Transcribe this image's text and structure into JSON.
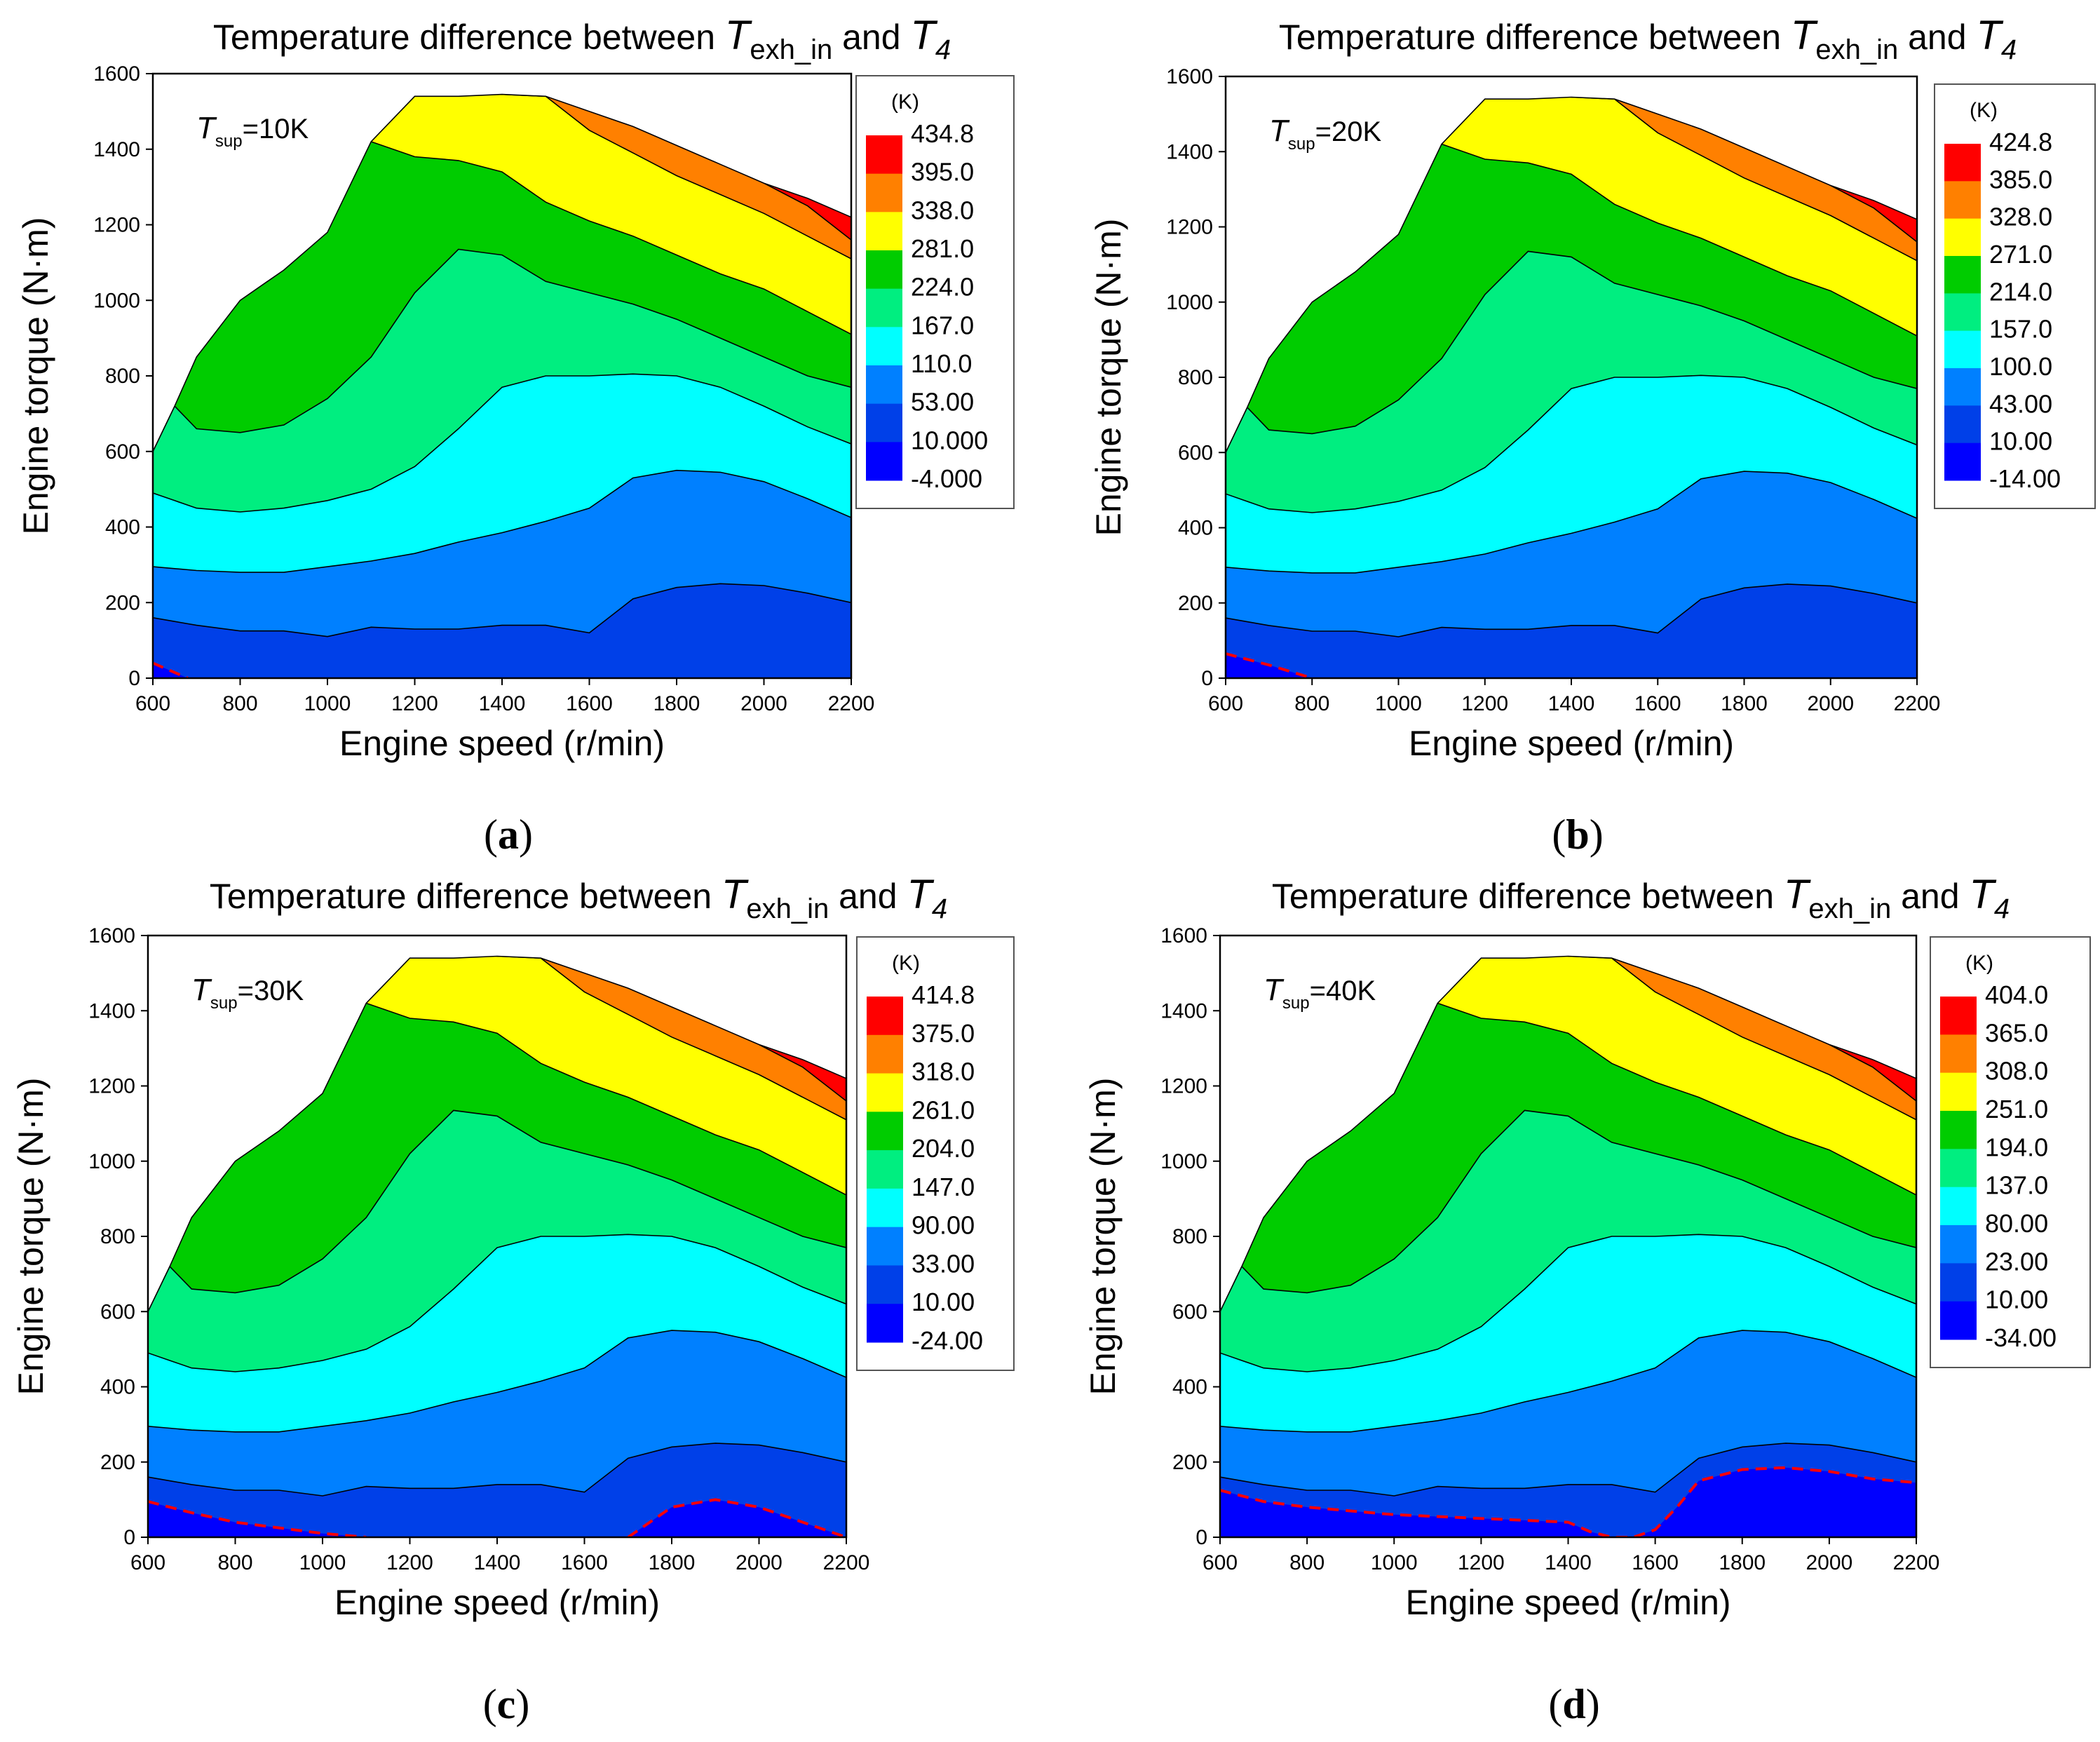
{
  "figure": {
    "title_lead": "Temperature difference between ",
    "title_var_a": "T",
    "title_var_a_sub": "exh_in",
    "title_mid": " and ",
    "title_var_b": "T",
    "title_var_b_sub": "4"
  },
  "colors": {
    "levels": [
      "#0000ff",
      "#0040e8",
      "#0080ff",
      "#00ffff",
      "#00ee80",
      "#00cc00",
      "#ffff00",
      "#ff8000",
      "#ff0000"
    ],
    "boundary_dash": "#ff0000",
    "contour_line": "#000000"
  },
  "chart_data": [
    {
      "type": "contour",
      "panel_label": "a",
      "title": "Temperature difference between Texh_in and T4",
      "annotation": {
        "var": "T",
        "sub": "sup",
        "value": "=10K"
      },
      "xlabel": "Engine speed (r/min)",
      "ylabel": "Engine torque (N·m)",
      "xlim": [
        600,
        2200
      ],
      "ylim": [
        0,
        1600
      ],
      "x_ticks": [
        "600",
        "800",
        "1000",
        "1200",
        "1400",
        "1600",
        "1800",
        "2000",
        "2200"
      ],
      "y_ticks": [
        "0",
        "200",
        "400",
        "600",
        "800",
        "1000",
        "1200",
        "1400",
        "1600"
      ],
      "legend_title": "(K)",
      "legend_labels": [
        "434.8",
        "395.0",
        "338.0",
        "281.0",
        "224.0",
        "167.0",
        "110.0",
        "53.00",
        "10.000",
        "-4.000"
      ],
      "zero_line": [
        [
          600,
          40
        ],
        [
          680,
          0
        ]
      ]
    },
    {
      "type": "contour",
      "panel_label": "b",
      "title": "Temperature difference between Texh_in and T4",
      "annotation": {
        "var": "T",
        "sub": "sup",
        "value": "=20K"
      },
      "xlabel": "Engine speed (r/min)",
      "ylabel": "Engine torque (N·m)",
      "xlim": [
        600,
        2200
      ],
      "ylim": [
        0,
        1600
      ],
      "x_ticks": [
        "600",
        "800",
        "1000",
        "1200",
        "1400",
        "1600",
        "1800",
        "2000",
        "2200"
      ],
      "y_ticks": [
        "0",
        "200",
        "400",
        "600",
        "800",
        "1000",
        "1200",
        "1400",
        "1600"
      ],
      "legend_title": "(K)",
      "legend_labels": [
        "424.8",
        "385.0",
        "328.0",
        "271.0",
        "214.0",
        "157.0",
        "100.0",
        "43.00",
        "10.00",
        "-14.00"
      ],
      "zero_line": [
        [
          600,
          65
        ],
        [
          700,
          35
        ],
        [
          800,
          0
        ]
      ]
    },
    {
      "type": "contour",
      "panel_label": "c",
      "title": "Temperature difference between Texh_in and T4",
      "annotation": {
        "var": "T",
        "sub": "sup",
        "value": "=30K"
      },
      "xlabel": "Engine speed (r/min)",
      "ylabel": "Engine torque (N·m)",
      "xlim": [
        600,
        2200
      ],
      "ylim": [
        0,
        1600
      ],
      "x_ticks": [
        "600",
        "800",
        "1000",
        "1200",
        "1400",
        "1600",
        "1800",
        "2000",
        "2200"
      ],
      "y_ticks": [
        "0",
        "200",
        "400",
        "600",
        "800",
        "1000",
        "1200",
        "1400",
        "1600"
      ],
      "legend_title": "(K)",
      "legend_labels": [
        "414.8",
        "375.0",
        "318.0",
        "261.0",
        "204.0",
        "147.0",
        "90.00",
        "33.00",
        "10.00",
        "-24.00"
      ],
      "zero_line": [
        [
          600,
          95
        ],
        [
          700,
          65
        ],
        [
          800,
          40
        ],
        [
          900,
          25
        ],
        [
          1000,
          10
        ],
        [
          1100,
          0
        ]
      ],
      "zero_line_2": [
        [
          1700,
          0
        ],
        [
          1800,
          80
        ],
        [
          1900,
          100
        ],
        [
          2000,
          80
        ],
        [
          2100,
          40
        ],
        [
          2200,
          0
        ]
      ]
    },
    {
      "type": "contour",
      "panel_label": "d",
      "title": "Temperature difference between Texh_in and T4",
      "annotation": {
        "var": "T",
        "sub": "sup",
        "value": "=40K"
      },
      "xlabel": "Engine speed (r/min)",
      "ylabel": "Engine torque (N·m)",
      "xlim": [
        600,
        2200
      ],
      "ylim": [
        0,
        1600
      ],
      "x_ticks": [
        "600",
        "800",
        "1000",
        "1200",
        "1400",
        "1600",
        "1800",
        "2000",
        "2200"
      ],
      "y_ticks": [
        "0",
        "200",
        "400",
        "600",
        "800",
        "1000",
        "1200",
        "1400",
        "1600"
      ],
      "legend_title": "(K)",
      "legend_labels": [
        "404.0",
        "365.0",
        "308.0",
        "251.0",
        "194.0",
        "137.0",
        "80.00",
        "23.00",
        "10.00",
        "-34.00"
      ],
      "zero_line": [
        [
          600,
          125
        ],
        [
          700,
          95
        ],
        [
          800,
          80
        ],
        [
          900,
          70
        ],
        [
          1000,
          60
        ],
        [
          1100,
          55
        ],
        [
          1200,
          50
        ],
        [
          1300,
          45
        ],
        [
          1400,
          40
        ],
        [
          1450,
          15
        ],
        [
          1500,
          0
        ],
        [
          1550,
          0
        ],
        [
          1600,
          20
        ],
        [
          1650,
          80
        ],
        [
          1700,
          150
        ],
        [
          1800,
          180
        ],
        [
          1900,
          185
        ],
        [
          2000,
          175
        ],
        [
          2100,
          155
        ],
        [
          2200,
          145
        ]
      ]
    }
  ]
}
